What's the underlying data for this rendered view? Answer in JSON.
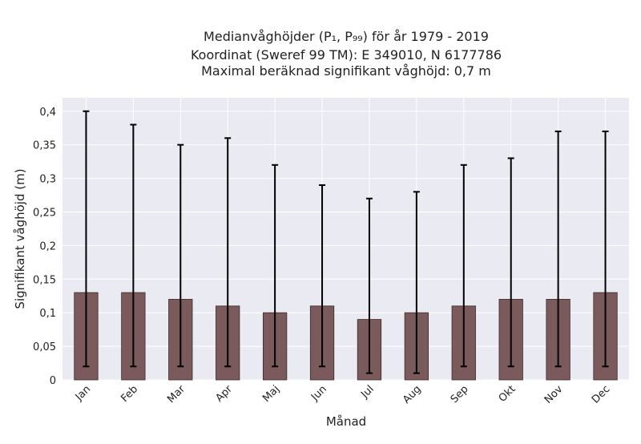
{
  "chart_data": {
    "type": "bar",
    "title_lines": [
      "Medianvåghöjder (P₁, P₉₉) för år 1979 - 2019",
      "Koordinat (Sweref 99 TM): E 349010, N 6177786",
      "Maximal beräknad signifikant våghöjd: 0,7 m"
    ],
    "xlabel": "Månad",
    "ylabel": "Signifikant våghöjd (m)",
    "categories": [
      "Jan",
      "Feb",
      "Mar",
      "Apr",
      "Maj",
      "Jun",
      "Jul",
      "Aug",
      "Sep",
      "Okt",
      "Nov",
      "Dec"
    ],
    "values": [
      0.13,
      0.13,
      0.12,
      0.11,
      0.1,
      0.11,
      0.09,
      0.1,
      0.11,
      0.12,
      0.12,
      0.13
    ],
    "p1": [
      0.02,
      0.02,
      0.02,
      0.02,
      0.02,
      0.02,
      0.01,
      0.01,
      0.02,
      0.02,
      0.02,
      0.02
    ],
    "p99": [
      0.4,
      0.38,
      0.35,
      0.36,
      0.32,
      0.29,
      0.27,
      0.28,
      0.32,
      0.33,
      0.37,
      0.37
    ],
    "ylim": [
      0,
      0.42
    ],
    "yticks": [
      0,
      0.05,
      0.1,
      0.15,
      0.2,
      0.25,
      0.3,
      0.35,
      0.4
    ],
    "ytick_labels": [
      "0",
      "0,05",
      "0,1",
      "0,15",
      "0,2",
      "0,25",
      "0,3",
      "0,35",
      "0,4"
    ],
    "grid": true,
    "colors": {
      "bar": "#7a5a5a",
      "bar_edge": "#3a2a2a",
      "errorbar": "#000000",
      "plot_bg": "#eaeaf2",
      "grid": "#ffffff"
    }
  }
}
